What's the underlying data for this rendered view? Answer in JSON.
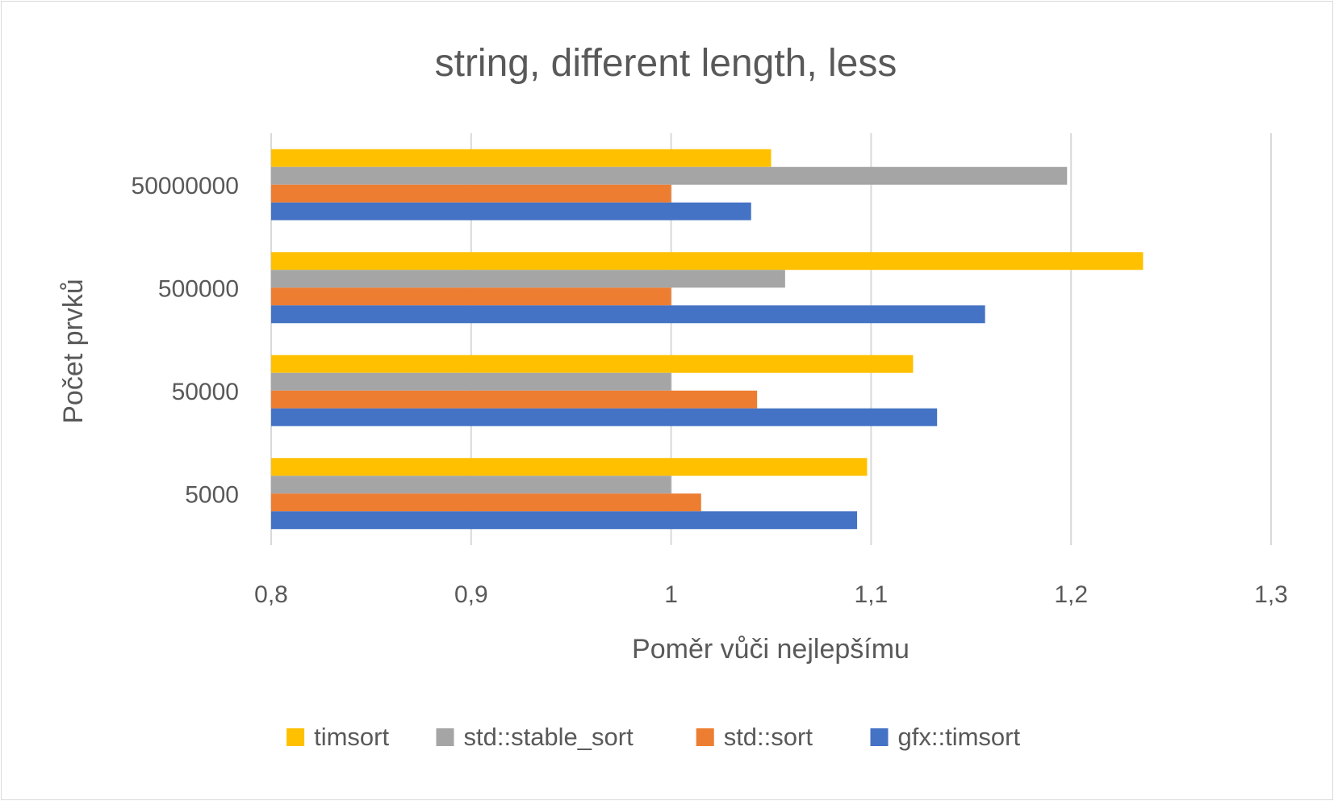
{
  "chart_data": {
    "type": "bar",
    "orientation": "horizontal",
    "title": "string, different length, less",
    "xlabel": "Poměr vůči nejlepšímu",
    "ylabel": "Počet prvků",
    "xlim": [
      0.8,
      1.3
    ],
    "xticks": [
      "0,8",
      "0,9",
      "1",
      "1,1",
      "1,2",
      "1,3"
    ],
    "xtick_values": [
      0.8,
      0.9,
      1.0,
      1.1,
      1.2,
      1.3
    ],
    "grid": true,
    "legend_position": "bottom",
    "categories": [
      "5000",
      "50000",
      "500000",
      "50000000"
    ],
    "series": [
      {
        "name": "timsort",
        "color": "#FFC000",
        "values": [
          1.098,
          1.121,
          1.236,
          1.05
        ]
      },
      {
        "name": "std::stable_sort",
        "color": "#A5A5A5",
        "values": [
          1.0,
          1.0,
          1.057,
          1.198
        ]
      },
      {
        "name": "std::sort",
        "color": "#ED7D31",
        "values": [
          1.015,
          1.043,
          1.0,
          1.0
        ]
      },
      {
        "name": "gfx::timsort",
        "color": "#4472C4",
        "values": [
          1.093,
          1.133,
          1.157,
          1.04
        ]
      }
    ]
  }
}
